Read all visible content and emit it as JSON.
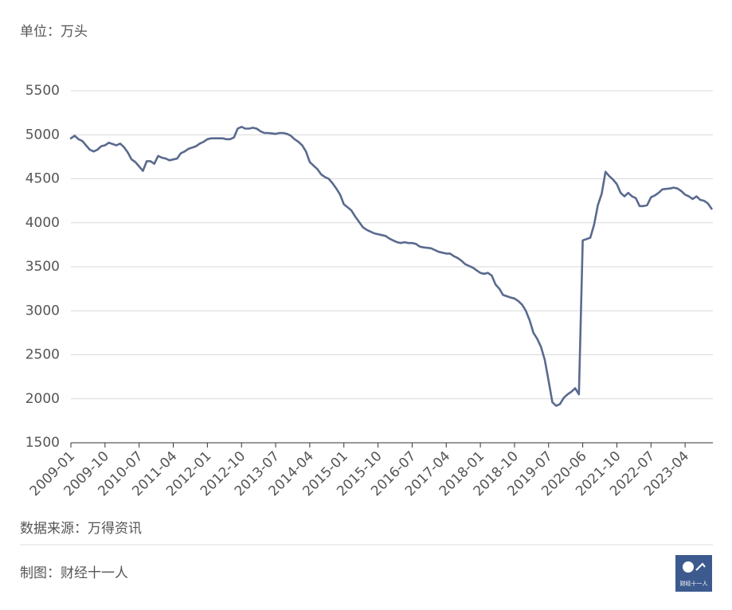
{
  "chart_data": {
    "type": "line",
    "unit_label": "单位：万头",
    "source": "数据来源：万得资讯",
    "credit": "制图：财经十一人",
    "logo_text": "财经十一人",
    "color": "#5a6a8e",
    "ylim": [
      1500,
      5500
    ],
    "yticks": [
      1500,
      2000,
      2500,
      3000,
      3500,
      4000,
      4500,
      5000,
      5500
    ],
    "grid": true,
    "categories": [
      "2009-01",
      null,
      null,
      null,
      null,
      null,
      null,
      null,
      null,
      "2009-10",
      null,
      null,
      null,
      null,
      null,
      null,
      null,
      null,
      "2010-07",
      null,
      null,
      null,
      null,
      null,
      null,
      null,
      null,
      "2011-04",
      null,
      null,
      null,
      null,
      null,
      null,
      null,
      null,
      "2012-01",
      null,
      null,
      null,
      null,
      null,
      null,
      null,
      null,
      "2012-10",
      null,
      null,
      null,
      null,
      null,
      null,
      null,
      null,
      "2013-07",
      null,
      null,
      null,
      null,
      null,
      null,
      null,
      null,
      "2014-04",
      null,
      null,
      null,
      null,
      null,
      null,
      null,
      null,
      "2015-01",
      null,
      null,
      null,
      null,
      null,
      null,
      null,
      null,
      "2015-10",
      null,
      null,
      null,
      null,
      null,
      null,
      null,
      null,
      "2016-07",
      null,
      null,
      null,
      null,
      null,
      null,
      null,
      null,
      "2017-04",
      null,
      null,
      null,
      null,
      null,
      null,
      null,
      null,
      "2018-01",
      null,
      null,
      null,
      null,
      null,
      null,
      null,
      null,
      "2018-10",
      null,
      null,
      null,
      null,
      null,
      null,
      null,
      null,
      "2019-07",
      null,
      null,
      null,
      null,
      null,
      null,
      null,
      null,
      "2020-06",
      null,
      null,
      null,
      null,
      null,
      null,
      null,
      null,
      "2021-10",
      null,
      null,
      null,
      null,
      null,
      null,
      null,
      null,
      "2022-07",
      null,
      null,
      null,
      null,
      null,
      null,
      null,
      null,
      "2023-04",
      null,
      null,
      null,
      null,
      null,
      null,
      null
    ],
    "values": [
      4960,
      4990,
      4950,
      4930,
      4880,
      4830,
      4810,
      4830,
      4870,
      4880,
      4910,
      4895,
      4880,
      4900,
      4860,
      4800,
      4720,
      4690,
      4640,
      4590,
      4700,
      4700,
      4670,
      4760,
      4740,
      4730,
      4710,
      4720,
      4730,
      4790,
      4810,
      4840,
      4855,
      4870,
      4900,
      4920,
      4950,
      4960,
      4960,
      4960,
      4960,
      4950,
      4950,
      4970,
      5070,
      5090,
      5070,
      5070,
      5080,
      5070,
      5040,
      5020,
      5020,
      5015,
      5010,
      5020,
      5020,
      5010,
      4990,
      4950,
      4920,
      4880,
      4810,
      4690,
      4650,
      4610,
      4550,
      4520,
      4500,
      4450,
      4390,
      4320,
      4210,
      4175,
      4140,
      4070,
      4010,
      3950,
      3920,
      3900,
      3880,
      3870,
      3860,
      3850,
      3820,
      3800,
      3780,
      3770,
      3780,
      3770,
      3770,
      3760,
      3730,
      3720,
      3715,
      3710,
      3690,
      3670,
      3660,
      3650,
      3650,
      3620,
      3600,
      3570,
      3530,
      3510,
      3490,
      3460,
      3430,
      3420,
      3430,
      3400,
      3300,
      3250,
      3180,
      3165,
      3150,
      3140,
      3110,
      3070,
      3000,
      2890,
      2750,
      2680,
      2590,
      2440,
      2200,
      1960,
      1920,
      1940,
      2010,
      2050,
      2080,
      2120,
      2050,
      3800,
      3815,
      3830,
      3980,
      4200,
      4330,
      4580,
      4530,
      4490,
      4440,
      4340,
      4300,
      4340,
      4300,
      4280,
      4190,
      4190,
      4200,
      4290,
      4310,
      4340,
      4380,
      4385,
      4390,
      4400,
      4390,
      4360,
      4320,
      4300,
      4270,
      4300,
      4260,
      4250,
      4220,
      4160
    ]
  }
}
